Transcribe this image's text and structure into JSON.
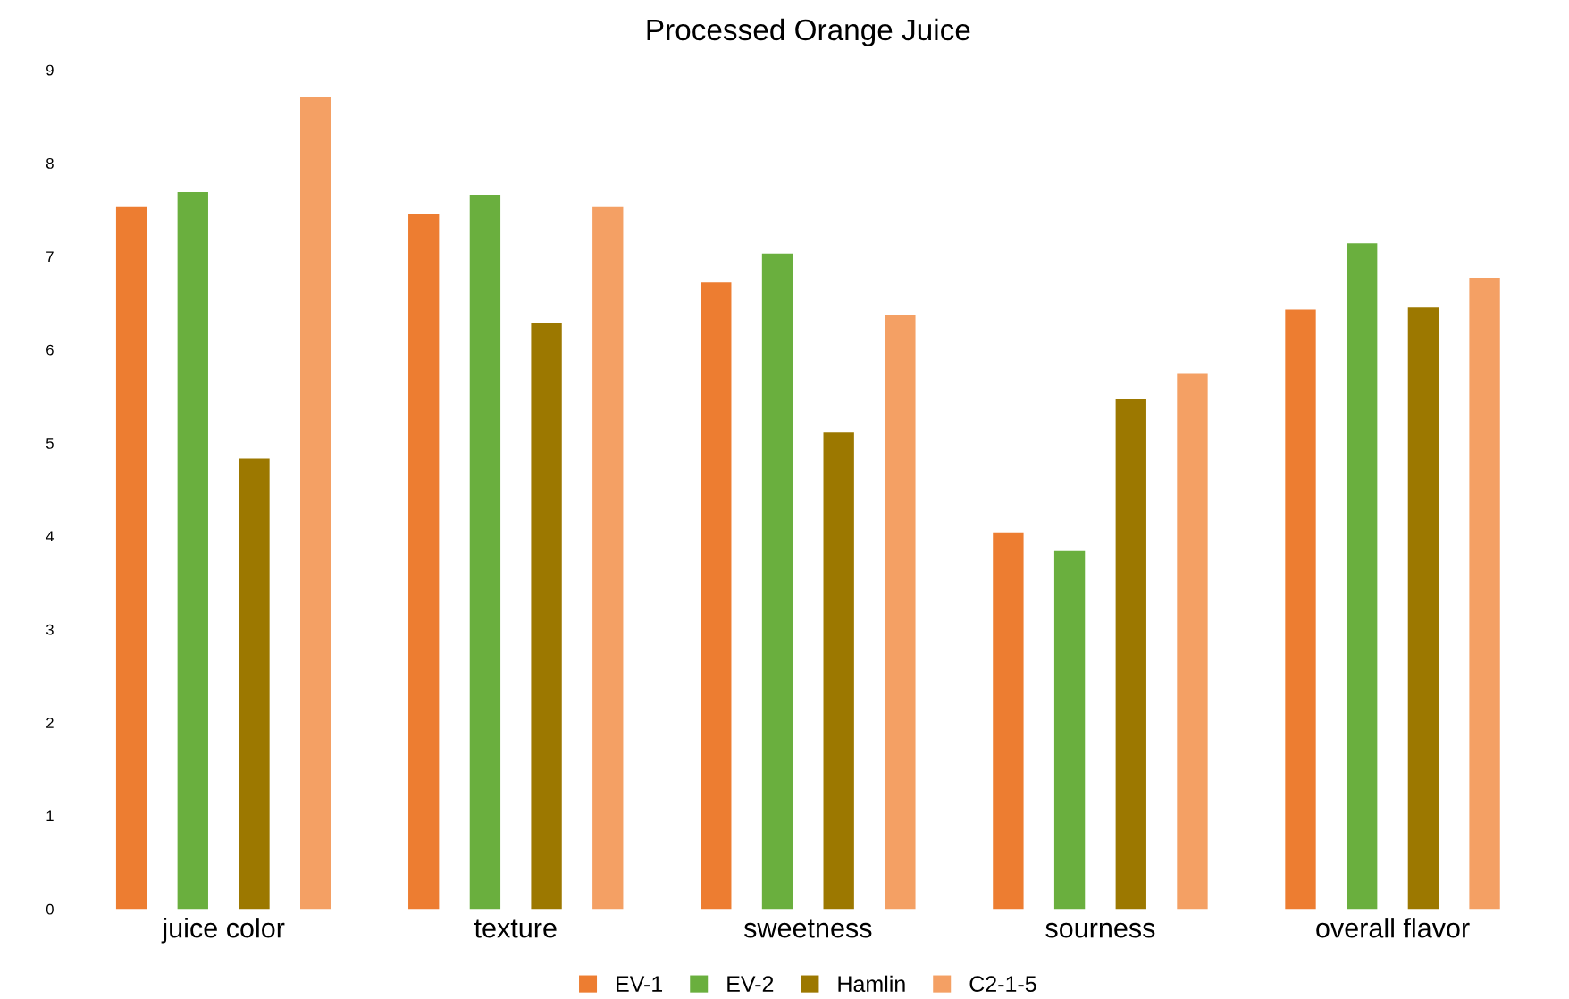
{
  "chart_data": {
    "type": "bar",
    "title": "Processed Orange Juice",
    "categories": [
      "juice color",
      "texture",
      "sweetness",
      "sourness",
      "overall flavor"
    ],
    "series": [
      {
        "name": "EV-1",
        "color": "#ed7d31",
        "values": [
          7.53,
          7.46,
          6.72,
          4.04,
          6.43
        ]
      },
      {
        "name": "EV-2",
        "color": "#6aaf3e",
        "values": [
          7.69,
          7.66,
          7.03,
          3.84,
          7.14
        ]
      },
      {
        "name": "Hamlin",
        "color": "#9c7800",
        "values": [
          4.83,
          6.28,
          5.11,
          5.47,
          6.45
        ]
      },
      {
        "name": "C2-1-5",
        "color": "#f4a064",
        "values": [
          8.71,
          7.53,
          6.37,
          5.75,
          6.77
        ]
      }
    ],
    "ylim": [
      0,
      9
    ],
    "yticks": [
      0,
      1,
      2,
      3,
      4,
      5,
      6,
      7,
      8,
      9
    ],
    "grid": false,
    "legend": "bottom"
  }
}
